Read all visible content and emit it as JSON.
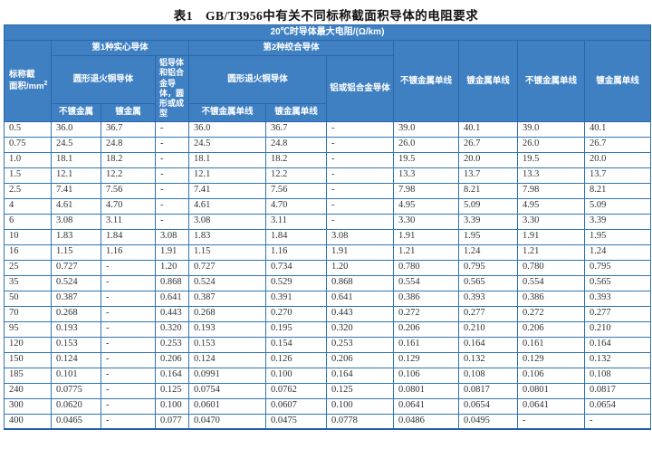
{
  "title": "表1　GB/T3956中有关不同标称截面积导体的电阻要求",
  "table": {
    "unit_header": "20℃时导体最大电阻/(Ω/km)",
    "area_header": {
      "line1": "标称截",
      "line2": "面积/mm",
      "sup": "2"
    },
    "group1": "第1种实心导体",
    "group2": "第2种绞合导体",
    "copper1": "圆形退火铜导体",
    "al1": "铝导体和铝合金导体，圆形或成型",
    "copper2": "圆形退火铜导体",
    "al2": "铝或铝合金导体",
    "leaf": [
      "不镀金属",
      "镀金属",
      "不镀金属单线",
      "镀金属单线"
    ],
    "right_headers": [
      "不镀金属单线",
      "镀金属单线",
      "不镀金属单线",
      "镀金属单线"
    ],
    "rows": [
      [
        "0.5",
        "36.0",
        "36.7",
        "-",
        "36.0",
        "36.7",
        "-",
        "39.0",
        "40.1",
        "39.0",
        "40.1"
      ],
      [
        "0.75",
        "24.5",
        "24.8",
        "-",
        "24.5",
        "24.8",
        "-",
        "26.0",
        "26.7",
        "26.0",
        "26.7"
      ],
      [
        "1.0",
        "18.1",
        "18.2",
        "-",
        "18.1",
        "18.2",
        "-",
        "19.5",
        "20.0",
        "19.5",
        "20.0"
      ],
      [
        "1.5",
        "12.1",
        "12.2",
        "-",
        "12.1",
        "12.2",
        "-",
        "13.3",
        "13.7",
        "13.3",
        "13.7"
      ],
      [
        "2.5",
        "7.41",
        "7.56",
        "-",
        "7.41",
        "7.56",
        "-",
        "7.98",
        "8.21",
        "7.98",
        "8.21"
      ],
      [
        "4",
        "4.61",
        "4.70",
        "-",
        "4.61",
        "4.70",
        "-",
        "4.95",
        "5.09",
        "4.95",
        "5.09"
      ],
      [
        "6",
        "3.08",
        "3.11",
        "-",
        "3.08",
        "3.11",
        "-",
        "3.30",
        "3.39",
        "3.30",
        "3.39"
      ],
      [
        "10",
        "1.83",
        "1.84",
        "3.08",
        "1.83",
        "1.84",
        "3.08",
        "1.91",
        "1.95",
        "1.91",
        "1.95"
      ],
      [
        "16",
        "1.15",
        "1.16",
        "1.91",
        "1.15",
        "1.16",
        "1.91",
        "1.21",
        "1.24",
        "1.21",
        "1.24"
      ],
      [
        "25",
        "0.727",
        "-",
        "1.20",
        "0.727",
        "0.734",
        "1.20",
        "0.780",
        "0.795",
        "0.780",
        "0.795"
      ],
      [
        "35",
        "0.524",
        "-",
        "0.868",
        "0.524",
        "0.529",
        "0.868",
        "0.554",
        "0.565",
        "0.554",
        "0.565"
      ],
      [
        "50",
        "0.387",
        "-",
        "0.641",
        "0.387",
        "0.391",
        "0.641",
        "0.386",
        "0.393",
        "0.386",
        "0.393"
      ],
      [
        "70",
        "0.268",
        "-",
        "0.443",
        "0.268",
        "0.270",
        "0.443",
        "0.272",
        "0.277",
        "0.272",
        "0.277"
      ],
      [
        "95",
        "0.193",
        "-",
        "0.320",
        "0.193",
        "0.195",
        "0.320",
        "0.206",
        "0.210",
        "0.206",
        "0.210"
      ],
      [
        "120",
        "0.153",
        "-",
        "0.253",
        "0.153",
        "0.154",
        "0.253",
        "0.161",
        "0.164",
        "0.161",
        "0.164"
      ],
      [
        "150",
        "0.124",
        "-",
        "0.206",
        "0.124",
        "0.126",
        "0.206",
        "0.129",
        "0.132",
        "0.129",
        "0.132"
      ],
      [
        "185",
        "0.101",
        "-",
        "0.164",
        "0.0991",
        "0.100",
        "0.164",
        "0.106",
        "0.108",
        "0.106",
        "0.108"
      ],
      [
        "240",
        "0.0775",
        "-",
        "0.125",
        "0.0754",
        "0.0762",
        "0.125",
        "0.0801",
        "0.0817",
        "0.0801",
        "0.0817"
      ],
      [
        "300",
        "0.0620",
        "-",
        "0.100",
        "0.0601",
        "0.0607",
        "0.100",
        "0.0641",
        "0.0654",
        "0.0641",
        "0.0654"
      ],
      [
        "400",
        "0.0465",
        "-",
        "0.077",
        "0.0470",
        "0.0475",
        "0.0778",
        "0.0486",
        "0.0495",
        "-",
        "-"
      ]
    ]
  },
  "colors": {
    "header_background": "#3f80c3",
    "header_border": "#2b66ab",
    "cell_border": "#2e75b6",
    "header_text": "#ffffff",
    "cell_text": "#303030"
  }
}
